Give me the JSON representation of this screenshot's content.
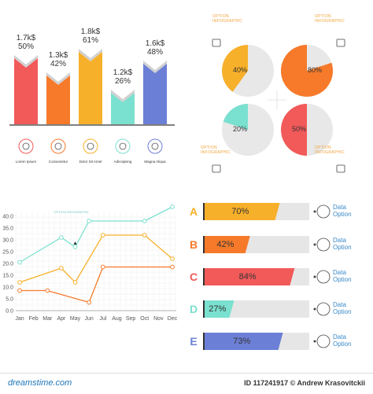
{
  "colors": {
    "red": "#f25a5a",
    "orange": "#f67a2a",
    "yellow": "#f7b02a",
    "teal": "#7ae0cf",
    "blue": "#6c7fd6",
    "gray": "#e6e6e6",
    "caption_blue": "#3a8ac8"
  },
  "bars": {
    "items": [
      {
        "value": "1.7k$",
        "pct": "50%",
        "color": "#f25a5a",
        "caption": "Lorem Ipsum",
        "icon": "medal-icon"
      },
      {
        "value": "1.3k$",
        "pct": "42%",
        "color": "#f67a2a",
        "caption": "Consectetur",
        "icon": "graduation-cap-icon"
      },
      {
        "value": "1.8k$",
        "pct": "61%",
        "color": "#f7b02a",
        "caption": "Dolor Sit Amet",
        "icon": "plant-icon"
      },
      {
        "value": "1.2k$",
        "pct": "26%",
        "color": "#7ae0cf",
        "caption": "Adicsipisng",
        "icon": "globe-icon"
      },
      {
        "value": "1.6k$",
        "pct": "48%",
        "color": "#6c7fd6",
        "caption": "Magna Aliqua",
        "icon": "info-icon"
      }
    ]
  },
  "pies": {
    "items": [
      {
        "pct": "40%",
        "value": 40,
        "color": "#f7b02a",
        "label": "OPTION INFOGRAPHIC",
        "icon": "document-icon"
      },
      {
        "pct": "80%",
        "value": 80,
        "color": "#f67a2a",
        "label": "OPTION INFOGRAPHIC",
        "icon": "briefcase-icon"
      },
      {
        "pct": "20%",
        "value": 20,
        "color": "#7ae0cf",
        "label": "OPTION INFOGRAPHIC",
        "icon": "currency-exchange-icon"
      },
      {
        "pct": "50%",
        "value": 50,
        "color": "#f25a5a",
        "label": "OPTION INFOGRAPHIC",
        "icon": "banknote-icon"
      }
    ]
  },
  "chart_data": {
    "type": "line",
    "x": [
      "Jan",
      "Feb",
      "Mar",
      "Apr",
      "May",
      "Jun",
      "Jul",
      "Aug",
      "Sep",
      "Oct",
      "Nov",
      "Dec"
    ],
    "ytick_labels": [
      "0.0",
      "5.0",
      "10.0",
      "15.0",
      "20.0",
      "25.0",
      "30.0",
      "35.0",
      "40.0"
    ],
    "ylim": [
      0,
      40
    ],
    "grid": true,
    "annotation": {
      "label": "OPTION INFOGRAPHIC",
      "x": "May",
      "y": 30
    },
    "series": [
      {
        "color": "#7ae0cf",
        "points": [
          {
            "x": "Jan",
            "y": 20.5
          },
          {
            "x": "Apr",
            "y": 31
          },
          {
            "x": "May",
            "y": 27
          },
          {
            "x": "Jun",
            "y": 38
          },
          {
            "x": "Oct",
            "y": 38
          },
          {
            "x": "Dec",
            "y": 44
          }
        ]
      },
      {
        "color": "#f7b02a",
        "points": [
          {
            "x": "Jan",
            "y": 12
          },
          {
            "x": "Apr",
            "y": 18
          },
          {
            "x": "May",
            "y": 12
          },
          {
            "x": "Jul",
            "y": 32
          },
          {
            "x": "Oct",
            "y": 32
          },
          {
            "x": "Dec",
            "y": 22
          }
        ]
      },
      {
        "color": "#f67a2a",
        "points": [
          {
            "x": "Jan",
            "y": 8.5
          },
          {
            "x": "Mar",
            "y": 8.5
          },
          {
            "x": "Jun",
            "y": 3.5
          },
          {
            "x": "Jul",
            "y": 18.5
          },
          {
            "x": "Dec",
            "y": 18.5
          }
        ]
      }
    ]
  },
  "hbars": {
    "items": [
      {
        "letter": "A",
        "pct": "70%",
        "value": 70,
        "color": "#f7b02a",
        "caption1": "Data",
        "caption2": "Option",
        "icon": "coins-icon"
      },
      {
        "letter": "B",
        "pct": "42%",
        "value": 42,
        "color": "#f67a2a",
        "caption1": "Data",
        "caption2": "Option",
        "icon": "pie-chart-icon"
      },
      {
        "letter": "C",
        "pct": "84%",
        "value": 84,
        "color": "#f25a5a",
        "caption1": "Data",
        "caption2": "Option",
        "icon": "trend-arrow-icon"
      },
      {
        "letter": "D",
        "pct": "27%",
        "value": 27,
        "color": "#7ae0cf",
        "caption1": "Data",
        "caption2": "Option",
        "icon": "envelope-icon"
      },
      {
        "letter": "E",
        "pct": "73%",
        "value": 73,
        "color": "#6c7fd6",
        "caption1": "Data",
        "caption2": "Option",
        "icon": "target-icon"
      }
    ]
  },
  "footer": {
    "logo": "dreamstime.com",
    "id": "ID 117241917 © Andrew Krasovitckii"
  }
}
